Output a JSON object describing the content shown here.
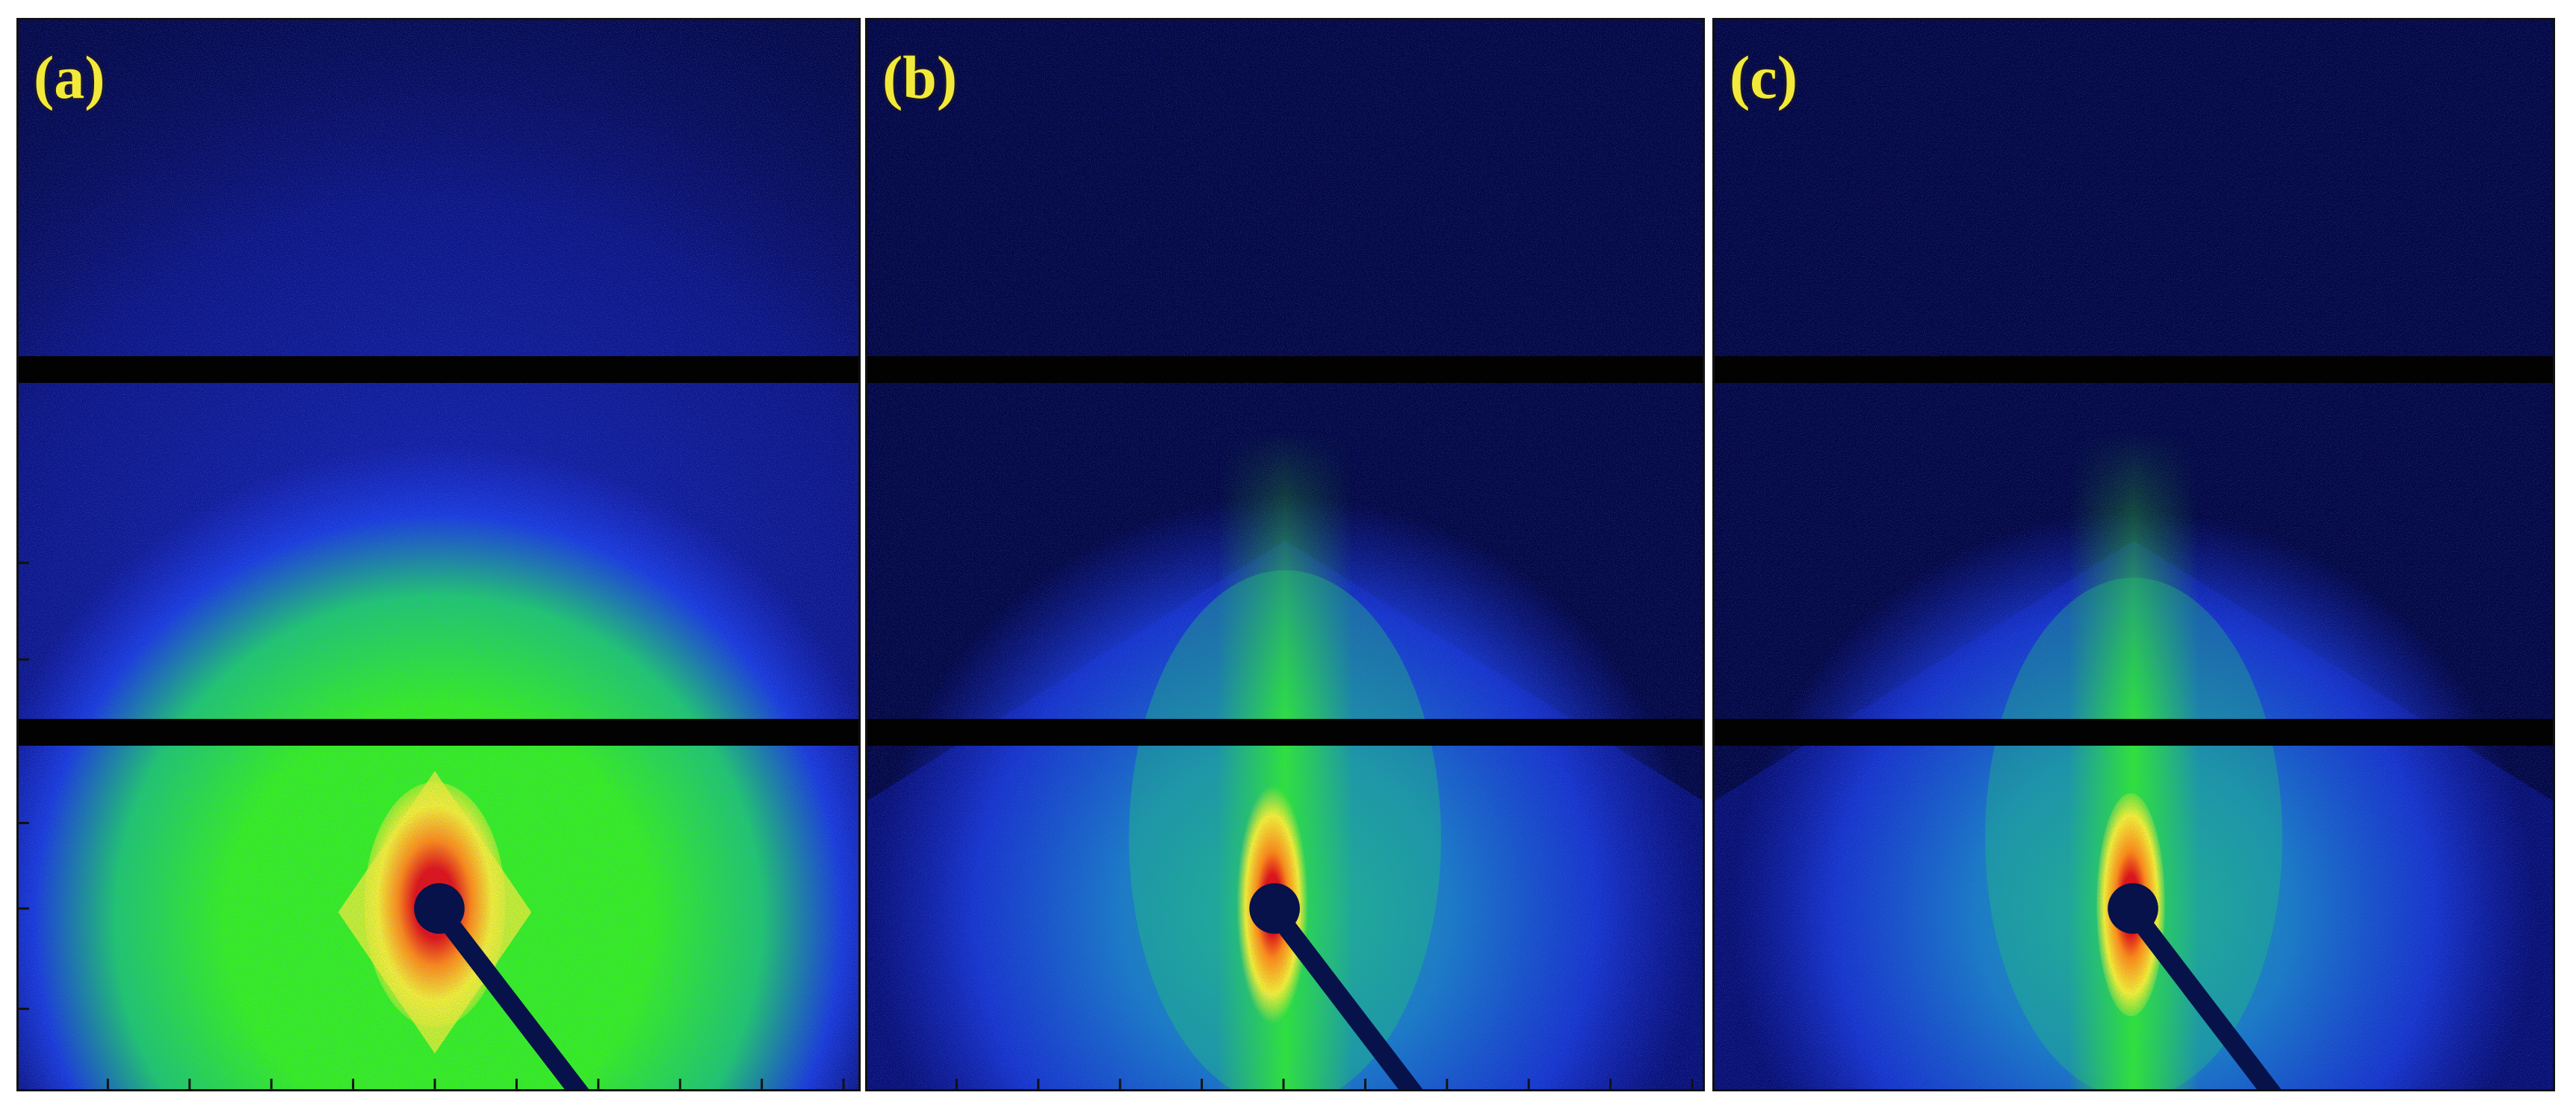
{
  "figure": {
    "panels": [
      {
        "id": "a",
        "label": "(a)",
        "pattern": "isotropic-halo"
      },
      {
        "id": "b",
        "label": "(b)",
        "pattern": "oriented-streak"
      },
      {
        "id": "c",
        "label": "(c)",
        "pattern": "oriented-streak"
      }
    ],
    "colors": {
      "background": "#030742",
      "detector_gap": "#020202",
      "label": "#f2ea3a",
      "colormap": [
        "#030742",
        "#1a2fd8",
        "#1fd068",
        "#35f01c",
        "#f4f030",
        "#ff8a10",
        "#e01010"
      ]
    }
  }
}
